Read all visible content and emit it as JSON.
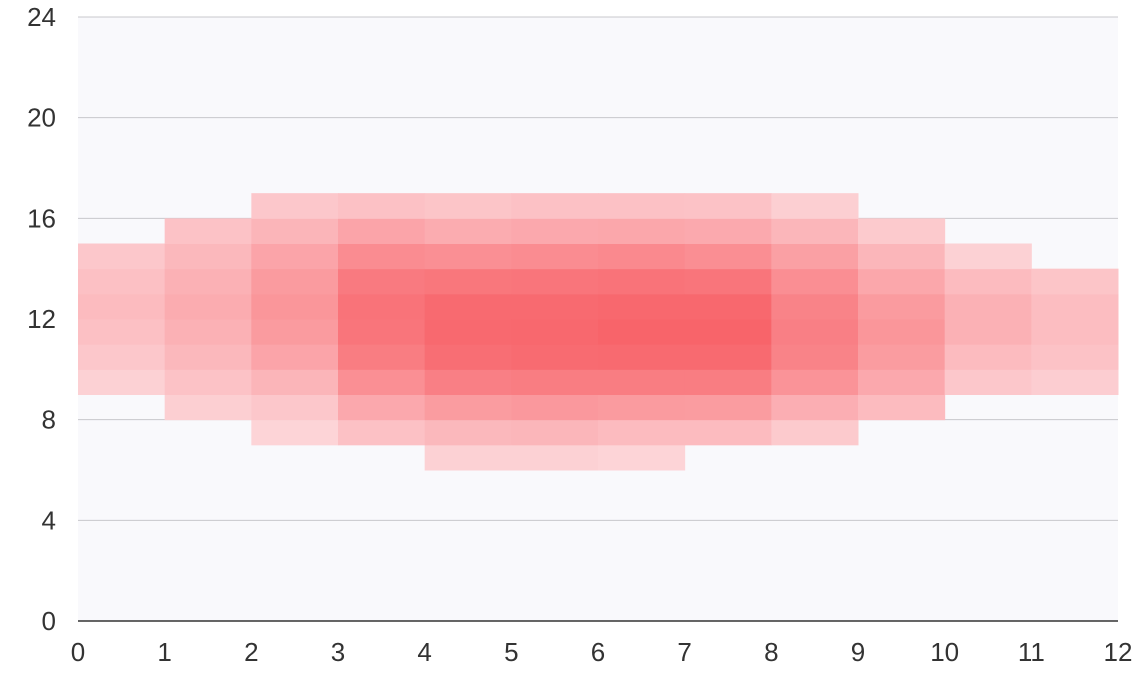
{
  "chart_data": {
    "type": "heatmap",
    "title": "",
    "xlabel": "",
    "ylabel": "",
    "xlim": [
      0,
      12
    ],
    "ylim": [
      0,
      24
    ],
    "x_ticks": [
      "0",
      "1",
      "2",
      "3",
      "4",
      "5",
      "6",
      "7",
      "8",
      "9",
      "10",
      "11",
      "12"
    ],
    "y_ticks": [
      "0",
      "4",
      "8",
      "12",
      "16",
      "20",
      "24"
    ],
    "grid": true,
    "color_low": "#fde0e3",
    "color_high": "#f8646a",
    "plot_background": "#f9f9fc",
    "value_scale": "relative intensity 0-1 (estimated from color)",
    "columns": [
      {
        "x": 0,
        "y_start": 9,
        "values": [
          0.12,
          0.2,
          0.26,
          0.3,
          0.26,
          0.2
        ]
      },
      {
        "x": 1,
        "y_start": 8,
        "values": [
          0.14,
          0.24,
          0.32,
          0.38,
          0.42,
          0.38,
          0.32,
          0.24
        ]
      },
      {
        "x": 2,
        "y_start": 7,
        "values": [
          0.1,
          0.2,
          0.35,
          0.48,
          0.56,
          0.6,
          0.56,
          0.48,
          0.35,
          0.2
        ]
      },
      {
        "x": 3,
        "y_start": 7,
        "values": [
          0.25,
          0.45,
          0.65,
          0.8,
          0.86,
          0.88,
          0.82,
          0.68,
          0.48,
          0.25
        ]
      },
      {
        "x": 4,
        "y_start": 6,
        "values": [
          0.12,
          0.32,
          0.55,
          0.78,
          0.92,
          0.96,
          0.95,
          0.85,
          0.65,
          0.42,
          0.22
        ]
      },
      {
        "x": 5,
        "y_start": 6,
        "values": [
          0.12,
          0.34,
          0.58,
          0.8,
          0.94,
          0.97,
          0.95,
          0.86,
          0.68,
          0.45,
          0.25
        ]
      },
      {
        "x": 6,
        "y_start": 6,
        "values": [
          0.1,
          0.3,
          0.56,
          0.8,
          0.95,
          1.0,
          0.97,
          0.88,
          0.7,
          0.46,
          0.25
        ]
      },
      {
        "x": 7,
        "y_start": 7,
        "values": [
          0.3,
          0.55,
          0.8,
          0.95,
          1.0,
          0.97,
          0.86,
          0.66,
          0.44,
          0.24
        ]
      },
      {
        "x": 8,
        "y_start": 7,
        "values": [
          0.18,
          0.4,
          0.62,
          0.75,
          0.78,
          0.75,
          0.66,
          0.52,
          0.34,
          0.14
        ]
      },
      {
        "x": 9,
        "y_start": 8,
        "values": [
          0.3,
          0.45,
          0.55,
          0.6,
          0.56,
          0.46,
          0.34,
          0.18
        ]
      },
      {
        "x": 10,
        "y_start": 9,
        "values": [
          0.2,
          0.3,
          0.38,
          0.38,
          0.3,
          0.12
        ]
      },
      {
        "x": 11,
        "y_start": 9,
        "values": [
          0.15,
          0.24,
          0.28,
          0.28,
          0.22
        ]
      }
    ]
  }
}
